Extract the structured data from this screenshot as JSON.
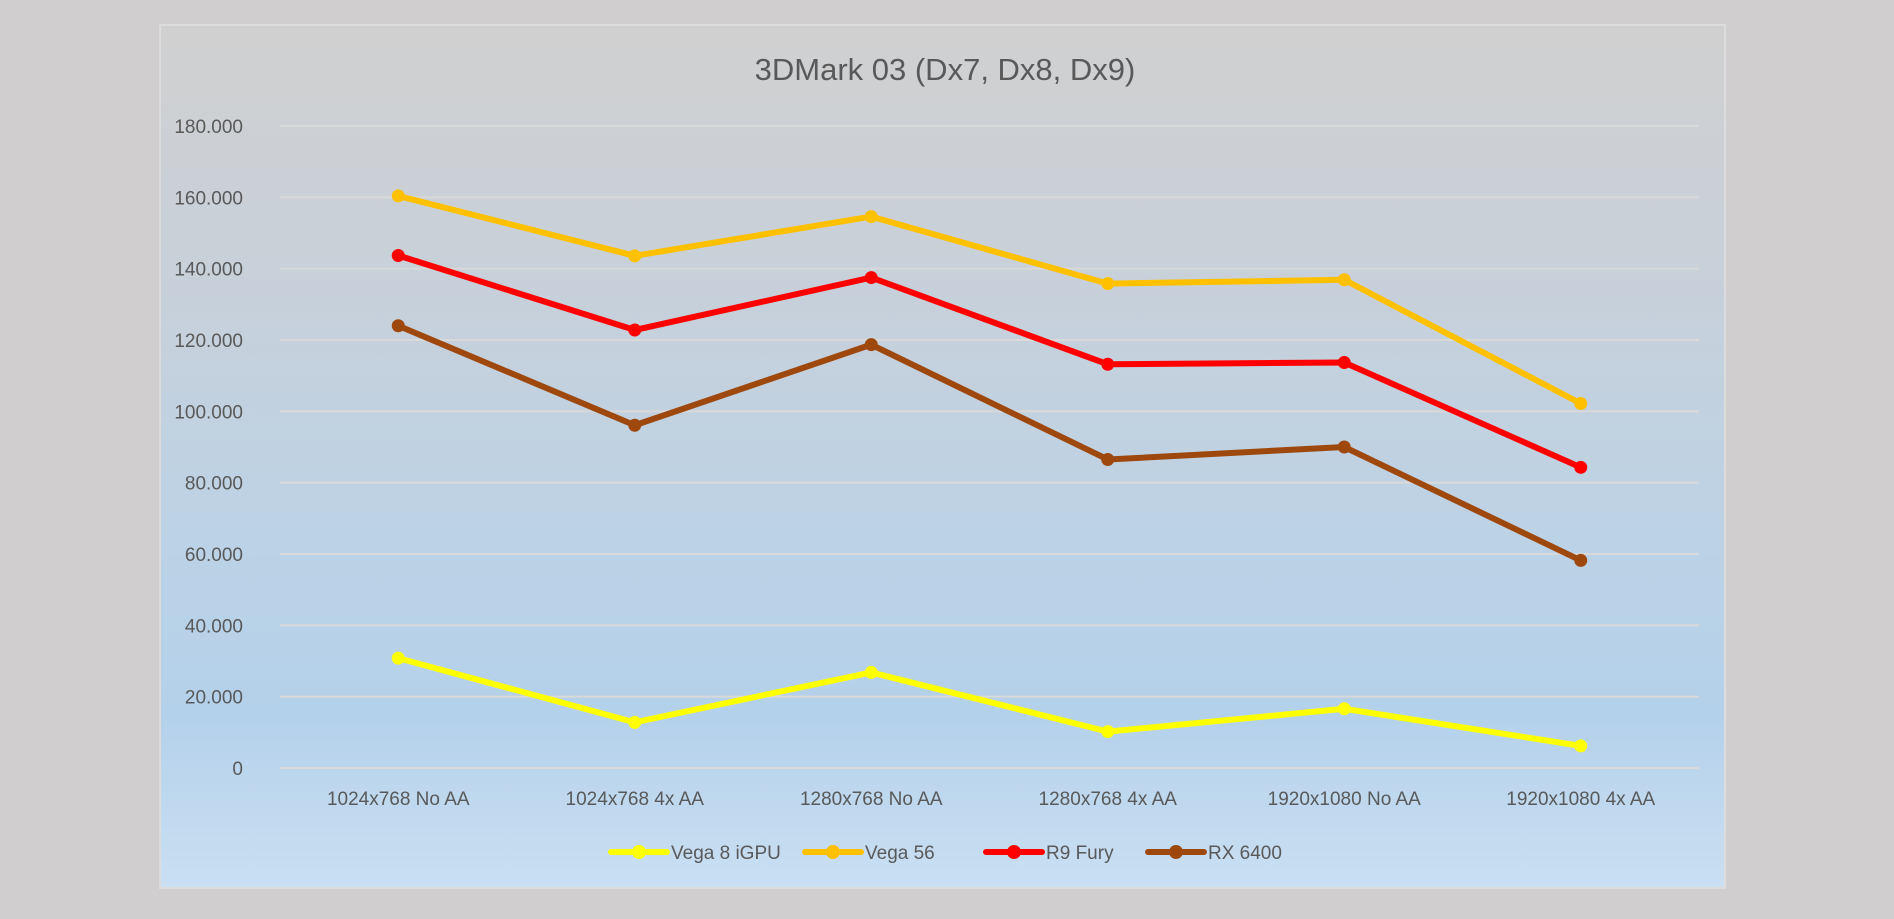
{
  "chart_data": {
    "type": "line",
    "title": "3DMark 03 (Dx7, Dx8, Dx9)",
    "xlabel": "",
    "ylabel": "",
    "ylim": [
      0,
      180
    ],
    "y_ticks": [
      0,
      20,
      40,
      60,
      80,
      100,
      120,
      140,
      160,
      180
    ],
    "y_tick_labels": [
      "0",
      "20.000",
      "40.000",
      "60.000",
      "80.000",
      "100.000",
      "120.000",
      "140.000",
      "160.000",
      "180.000"
    ],
    "grid": true,
    "legend_position": "bottom",
    "categories": [
      "1024x768 No AA",
      "1024x768 4x AA",
      "1280x768 No AA",
      "1280x768 4x AA",
      "1920x1080 No AA",
      "1920x1080 4x AA"
    ],
    "series": [
      {
        "name": "Vega 8 iGPU",
        "color": "#ffff00",
        "values": [
          30.8,
          12.8,
          26.8,
          10.2,
          16.6,
          6.2
        ]
      },
      {
        "name": "Vega 56",
        "color": "#ffc000",
        "values": [
          160.4,
          143.6,
          154.6,
          135.8,
          136.9,
          102.2
        ]
      },
      {
        "name": "R9 Fury",
        "color": "#ff0000",
        "values": [
          143.7,
          122.8,
          137.5,
          113.2,
          113.7,
          84.3
        ]
      },
      {
        "name": "RX 6400",
        "color": "#9e480e",
        "values": [
          124.0,
          96.1,
          118.7,
          86.5,
          90.0,
          58.2
        ]
      }
    ]
  }
}
